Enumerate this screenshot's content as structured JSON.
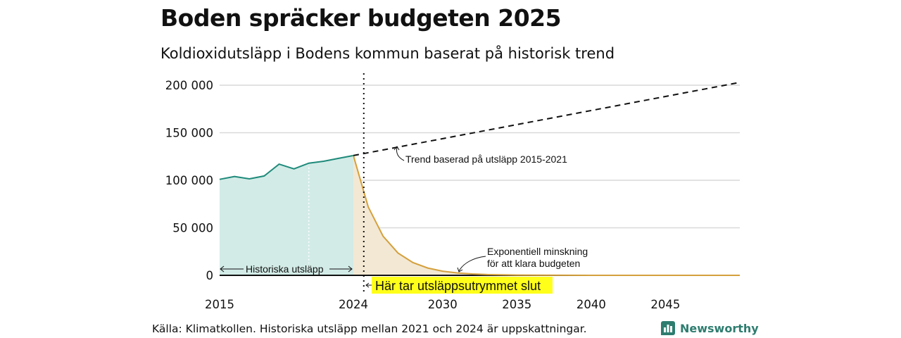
{
  "title": "Boden spräcker budgeten 2025",
  "subtitle": "Koldioxidutsläpp i Bodens kommun baserat på historisk trend",
  "source": "Källa: Klimatkollen. Historiska utsläpp mellan 2021 och 2024 är uppskattningar.",
  "brand": "Newsworthy",
  "colors": {
    "historical_line": "#1e8a7a",
    "historical_fill": "#d2ebe6",
    "budget_line": "#d4a03c",
    "budget_fill": "#f3e8d3",
    "highlight": "#ffff1a",
    "grid": "#d9d9d9"
  },
  "chart_data": {
    "type": "area",
    "title": "Boden spräcker budgeten 2025",
    "subtitle": "Koldioxidutsläpp i Bodens kommun baserat på historisk trend",
    "xlim": [
      2015,
      2050
    ],
    "ylim": [
      0,
      200000
    ],
    "y_ticks": [
      0,
      50000,
      100000,
      150000,
      200000
    ],
    "y_tick_labels": [
      "0",
      "50 000",
      "100 000",
      "150 000",
      "200 000"
    ],
    "x_ticks": [
      2015,
      2024,
      2030,
      2035,
      2040,
      2045
    ],
    "x_tick_labels": [
      "2015",
      "2024",
      "2030",
      "2035",
      "2040",
      "2045"
    ],
    "grid": true,
    "series": [
      {
        "name": "Historiska utsläpp",
        "style": "solid-area",
        "x": [
          2015,
          2016,
          2017,
          2018,
          2019,
          2020,
          2021,
          2022,
          2023,
          2024
        ],
        "y": [
          101000,
          104000,
          101500,
          104500,
          117000,
          112000,
          118000,
          120000,
          123000,
          126000
        ]
      },
      {
        "name": "Exponentiell minskning för att klara budgeten",
        "style": "solid-area",
        "x": [
          2024,
          2025,
          2026,
          2027,
          2028,
          2029,
          2030,
          2031,
          2032,
          2033,
          2035,
          2040,
          2045,
          2050
        ],
        "y": [
          126000,
          72000,
          41000,
          23500,
          13500,
          7700,
          4400,
          2500,
          1450,
          830,
          270,
          25,
          3,
          0
        ]
      },
      {
        "name": "Trend baserad på utsläpp 2015-2021",
        "style": "dashed",
        "x": [
          2024,
          2050
        ],
        "y": [
          126000,
          203000
        ]
      }
    ],
    "annotations": [
      {
        "text": "Trend baserad på utsläpp 2015-2021",
        "x": 2028,
        "y": 121000
      },
      {
        "text": "Exponentiell minskning",
        "x": 2034,
        "y": 22500
      },
      {
        "text": "för att klara budgeten",
        "x": 2034,
        "y": 11000
      },
      {
        "text": "Historiska utsläpp",
        "x": 2019.5,
        "y": 6000
      },
      {
        "text": "Här tar utsläppsutrymmet slut",
        "x": 2025.8,
        "y": -11000
      }
    ],
    "vline_x": 2024.7
  }
}
